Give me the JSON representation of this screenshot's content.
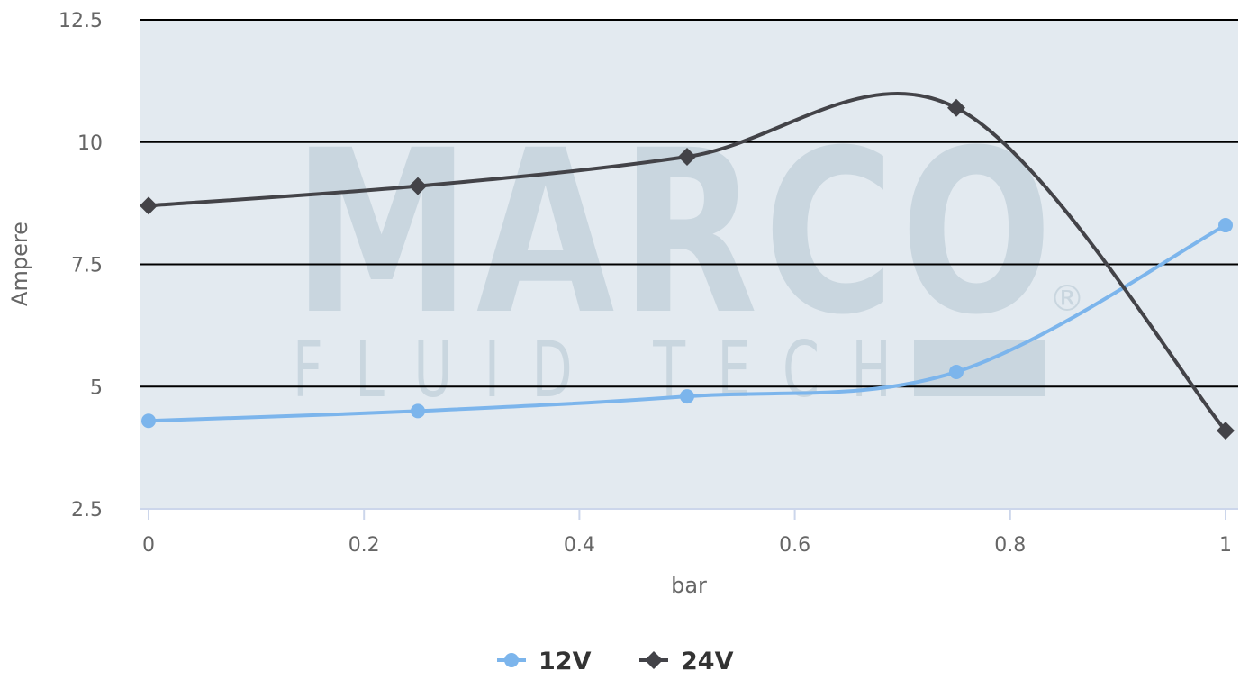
{
  "watermark": {
    "brand": "MARCO",
    "subtitle": "FLUID TECH",
    "registered_mark": "®"
  },
  "chart_data": {
    "type": "line",
    "title": "",
    "xlabel": "bar",
    "ylabel": "Ampere",
    "xlim": [
      0,
      1
    ],
    "ylim": [
      2.5,
      12.5
    ],
    "x_ticks": [
      0,
      0.2,
      0.4,
      0.6,
      0.8,
      1
    ],
    "x_tick_labels": [
      "0",
      "0.2",
      "0.4",
      "0.6",
      "0.8",
      "1"
    ],
    "y_ticks": [
      2.5,
      5,
      7.5,
      10,
      12.5
    ],
    "y_tick_labels": [
      "2.5",
      "5",
      "7.5",
      "10",
      "12.5"
    ],
    "grid": true,
    "legend_position": "bottom-center",
    "plot_background": "#e3eaf0",
    "series": [
      {
        "name": "12V",
        "color": "#7cb5ec",
        "marker": "circle",
        "x": [
          0,
          0.25,
          0.5,
          0.75,
          1
        ],
        "values": [
          4.3,
          4.5,
          4.8,
          5.3,
          8.3
        ]
      },
      {
        "name": "24V",
        "color": "#434348",
        "marker": "diamond",
        "x": [
          0,
          0.25,
          0.5,
          0.75,
          1
        ],
        "values": [
          8.7,
          9.1,
          9.7,
          10.7,
          4.1
        ]
      }
    ]
  }
}
